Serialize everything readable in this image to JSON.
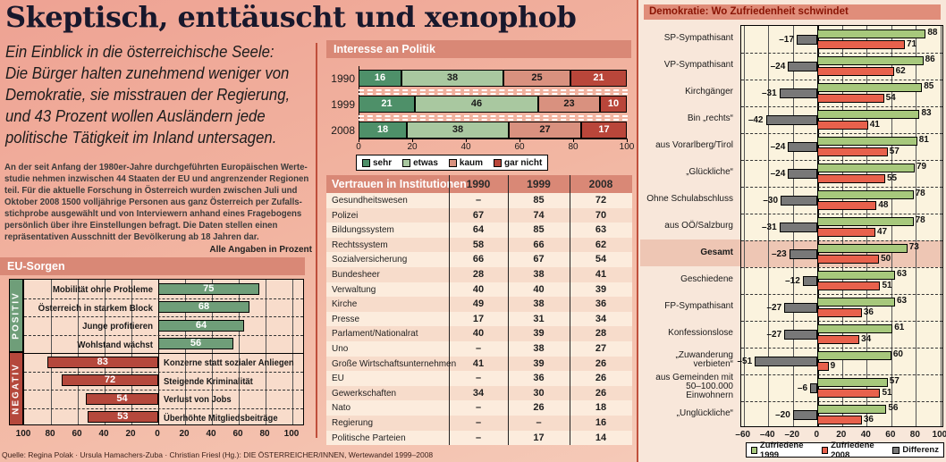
{
  "page": {
    "headline": "Skeptisch, enttäuscht und xenophob",
    "subtitle": "Ein Einblick in die österreichische Seele:\nDie Bürger halten zunehmend weniger von\nDemokratie, sie misstrauen der Regierung,\nund 43 Prozent wollen Ausländern jede\npolitische Tätigkeit im Inland untersagen.",
    "intro": "An der seit Anfang der 1980er-Jahre durchgeführten Europäischen Werte-\nstudie nehmen inzwischen 44 Staaten der EU und angrenzender Regionen\nteil. Für die aktuelle Forschung in Österreich wurden zwischen Juli und\nOktober 2008 1500 volljährige Personen aus ganz Österreich per Zufalls-\nstichprobe ausgewählt und von Interviewern anhand eines Fragebogens\npersönlich über ihre Einstellungen befragt. Die Daten stellen einen\nrepräsentativen Ausschnitt der Bevölkerung ab 18 Jahren dar.",
    "unit_note": "Alle Angaben in Prozent",
    "source": "Quelle: Regina Polak · Ursula Hamachers-Zuba · Christian Friesl (Hg.): DIE ÖSTERREICHER/INNEN, Wertewandel 1999–2008"
  },
  "colors": {
    "header_bar": "#d98876",
    "panel_title_bg": "#e08d7a",
    "panel_title_text": "#8a1404",
    "positiv_green": "#6f9e79",
    "negativ_red": "#b5483c",
    "sehr": "#4e9069",
    "etwas": "#a9c8a0",
    "kaum": "#d9917f",
    "gar_nicht": "#b9463a",
    "zufriedene_1999": "#a7c87c",
    "zufriedene_2008": "#e8614c",
    "differenz": "#787878",
    "table_row_light": "#fcecdd",
    "table_row_dark": "#f7dccb",
    "gesamt_highlight": "#eec6b4"
  },
  "chart_data": [
    {
      "id": "eu_sorgen",
      "type": "bar",
      "title": "EU-Sorgen",
      "orientation": "horizontal-diverging",
      "axis_ticks": [
        100,
        80,
        60,
        40,
        20,
        0,
        20,
        40,
        60,
        80,
        100
      ],
      "xlim": [
        -100,
        100
      ],
      "groups": [
        {
          "name": "POSITIV",
          "direction": "right",
          "items": [
            {
              "label": "Mobilität ohne Probleme",
              "value": 75
            },
            {
              "label": "Österreich in starkem Block",
              "value": 68
            },
            {
              "label": "Junge profitieren",
              "value": 64
            },
            {
              "label": "Wohlstand wächst",
              "value": 56
            }
          ]
        },
        {
          "name": "NEGATIV",
          "direction": "left",
          "items": [
            {
              "label": "Konzerne statt sozialer Anliegen",
              "value": 83
            },
            {
              "label": "Steigende Kriminalität",
              "value": 72
            },
            {
              "label": "Verlust von Jobs",
              "value": 54
            },
            {
              "label": "Überhöhte Mitgliedsbeiträge",
              "value": 53
            }
          ]
        }
      ]
    },
    {
      "id": "interesse_an_politik",
      "type": "bar",
      "stacked": true,
      "title": "Interesse an Politik",
      "categories": [
        "1990",
        "1999",
        "2008"
      ],
      "series": [
        {
          "name": "sehr",
          "color": "#4e9069",
          "text": "#ffffff",
          "values": [
            16,
            21,
            18
          ]
        },
        {
          "name": "etwas",
          "color": "#a9c8a0",
          "text": "#1a1a1a",
          "values": [
            38,
            46,
            38
          ]
        },
        {
          "name": "kaum",
          "color": "#d9917f",
          "text": "#1a1a1a",
          "values": [
            25,
            23,
            27
          ]
        },
        {
          "name": "gar nicht",
          "color": "#b9463a",
          "text": "#ffffff",
          "values": [
            21,
            10,
            17
          ]
        }
      ],
      "x_ticks": [
        0,
        20,
        40,
        60,
        80,
        100
      ],
      "xlim": [
        0,
        100
      ],
      "legend_position": "bottom"
    },
    {
      "id": "vertrauen_in_institutionen",
      "type": "table",
      "title": "Vertrauen in Institutionen",
      "columns": [
        "1990",
        "1999",
        "2008"
      ],
      "rows": [
        [
          "Gesundheitswesen",
          "–",
          "85",
          "72"
        ],
        [
          "Polizei",
          "67",
          "74",
          "70"
        ],
        [
          "Bildungssystem",
          "64",
          "85",
          "63"
        ],
        [
          "Rechtssystem",
          "58",
          "66",
          "62"
        ],
        [
          "Sozialversicherung",
          "66",
          "67",
          "54"
        ],
        [
          "Bundesheer",
          "28",
          "38",
          "41"
        ],
        [
          "Verwaltung",
          "40",
          "40",
          "39"
        ],
        [
          "Kirche",
          "49",
          "38",
          "36"
        ],
        [
          "Presse",
          "17",
          "31",
          "34"
        ],
        [
          "Parlament/Nationalrat",
          "40",
          "39",
          "28"
        ],
        [
          "Uno",
          "–",
          "38",
          "27"
        ],
        [
          "Große Wirtschaftsunternehmen",
          "41",
          "39",
          "26"
        ],
        [
          "EU",
          "–",
          "36",
          "26"
        ],
        [
          "Gewerkschaften",
          "34",
          "30",
          "26"
        ],
        [
          "Nato",
          "–",
          "26",
          "18"
        ],
        [
          "Regierung",
          "–",
          "–",
          "16"
        ],
        [
          "Politische Parteien",
          "–",
          "17",
          "14"
        ]
      ]
    },
    {
      "id": "demokratie",
      "type": "bar",
      "title": "Demokratie: Wo Zufriedenheit schwindet",
      "legend": [
        "Zufriedene 1999",
        "Zufriedene 2008",
        "Differenz"
      ],
      "x_ticks": [
        -60,
        -40,
        -20,
        0,
        20,
        40,
        60,
        80,
        100
      ],
      "xlim": [
        -62,
        103
      ],
      "rows": [
        {
          "label": "SP-Sympathisant",
          "zufriedene_1999": 88,
          "zufriedene_2008": 71,
          "differenz": -17
        },
        {
          "label": "VP-Sympathisant",
          "zufriedene_1999": 86,
          "zufriedene_2008": 62,
          "differenz": -24
        },
        {
          "label": "Kirchgänger",
          "zufriedene_1999": 85,
          "zufriedene_2008": 54,
          "differenz": -31
        },
        {
          "label": "Bin „rechts“",
          "zufriedene_1999": 83,
          "zufriedene_2008": 41,
          "differenz": -42
        },
        {
          "label": "aus Vorarlberg/Tirol",
          "zufriedene_1999": 81,
          "zufriedene_2008": 57,
          "differenz": -24
        },
        {
          "label": "„Glückliche“",
          "zufriedene_1999": 79,
          "zufriedene_2008": 55,
          "differenz": -24
        },
        {
          "label": "Ohne Schulabschluss",
          "zufriedene_1999": 78,
          "zufriedene_2008": 48,
          "differenz": -30
        },
        {
          "label": "aus OÖ/Salzburg",
          "zufriedene_1999": 78,
          "zufriedene_2008": 47,
          "differenz": -31
        },
        {
          "label": "Gesamt",
          "zufriedene_1999": 73,
          "zufriedene_2008": 50,
          "differenz": -23,
          "highlight": true
        },
        {
          "label": "Geschiedene",
          "zufriedene_1999": 63,
          "zufriedene_2008": 51,
          "differenz": -12
        },
        {
          "label": "FP-Sympathisant",
          "zufriedene_1999": 63,
          "zufriedene_2008": 36,
          "differenz": -27
        },
        {
          "label": "Konfessionslose",
          "zufriedene_1999": 61,
          "zufriedene_2008": 34,
          "differenz": -27
        },
        {
          "label": "„Zuwanderung\nverbieten“",
          "zufriedene_1999": 60,
          "zufriedene_2008": 9,
          "differenz": -51
        },
        {
          "label": "aus Gemeinden mit\n50–100.000\nEinwohnern",
          "zufriedene_1999": 57,
          "zufriedene_2008": 51,
          "differenz": -6
        },
        {
          "label": "„Unglückliche“",
          "zufriedene_1999": 56,
          "zufriedene_2008": 36,
          "differenz": -20
        }
      ]
    }
  ]
}
